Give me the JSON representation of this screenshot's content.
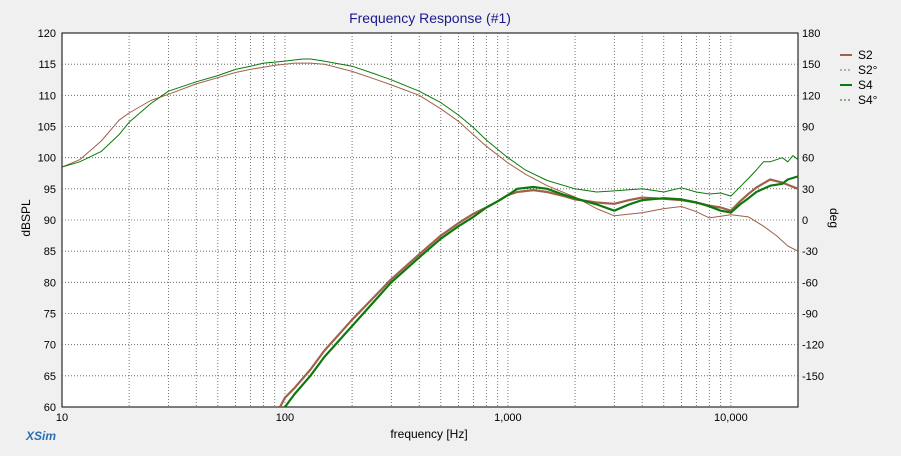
{
  "chart_data": {
    "type": "line",
    "title": "Frequency Response (#1)",
    "xlabel": "frequency [Hz]",
    "ylabel": "dBSPL",
    "y2label": "deg",
    "x_scale": "log",
    "xlim": [
      10,
      20000
    ],
    "ylim": [
      60,
      120
    ],
    "y2lim": [
      -180,
      180
    ],
    "grid": true,
    "legend_position": "right",
    "x_tick_labels": [
      "10",
      "100",
      "1,000",
      "10,000"
    ],
    "x_tick_values": [
      10,
      100,
      1000,
      10000
    ],
    "y_ticks": [
      60,
      65,
      70,
      75,
      80,
      85,
      90,
      95,
      100,
      105,
      110,
      115,
      120
    ],
    "y2_ticks": [
      -150,
      -120,
      -90,
      -60,
      -30,
      0,
      30,
      60,
      90,
      120,
      150,
      180
    ],
    "series": [
      {
        "name": "S2",
        "color": "#a0604a",
        "style": "solid",
        "axis": "left",
        "x": [
          95,
          100,
          110,
          130,
          150,
          200,
          300,
          400,
          500,
          600,
          700,
          800,
          900,
          1000,
          1100,
          1300,
          1500,
          1800,
          2000,
          2500,
          3000,
          3500,
          4000,
          5000,
          6000,
          7000,
          8000,
          9000,
          10000,
          11000,
          12000,
          13000,
          15000,
          17000,
          20000
        ],
        "y": [
          60,
          61.5,
          63,
          66,
          69,
          74,
          80.5,
          84.5,
          87.5,
          89.5,
          91,
          92,
          93,
          94,
          94.5,
          94.8,
          94.5,
          93.8,
          93.3,
          92.8,
          92.6,
          93.2,
          93.6,
          93.4,
          93.2,
          92.8,
          92.3,
          92,
          91.5,
          93,
          94.2,
          95.2,
          96.5,
          96,
          95
        ]
      },
      {
        "name": "S2°",
        "color": "#a0604a",
        "style": "dashed",
        "axis": "right",
        "x": [
          10,
          12,
          15,
          18,
          20,
          25,
          30,
          40,
          50,
          60,
          70,
          80,
          90,
          100,
          110,
          120,
          130,
          150,
          200,
          250,
          300,
          400,
          500,
          600,
          700,
          800,
          1000,
          1200,
          1500,
          2000,
          2500,
          3000,
          4000,
          5000,
          6000,
          7000,
          8000,
          10000,
          12000,
          14000,
          16000,
          18000,
          20000
        ],
        "y": [
          51,
          58,
          76,
          96,
          103,
          115,
          121,
          131,
          137,
          142,
          145,
          147,
          149,
          150,
          151,
          151,
          151,
          150,
          143,
          136,
          130,
          120,
          107,
          95,
          82,
          71,
          55,
          44,
          33,
          22,
          11,
          4,
          7,
          11,
          13,
          8,
          2,
          5,
          3,
          -6,
          -15,
          -25,
          -30
        ]
      },
      {
        "name": "S4",
        "color": "#0b7a0b",
        "style": "solid",
        "axis": "left",
        "x": [
          100,
          110,
          130,
          150,
          200,
          300,
          400,
          500,
          600,
          700,
          800,
          900,
          1000,
          1100,
          1300,
          1500,
          1800,
          2000,
          2500,
          3000,
          3500,
          4000,
          5000,
          6000,
          7000,
          8000,
          9000,
          10000,
          11000,
          12000,
          13000,
          15000,
          17000,
          18000,
          20000
        ],
        "y": [
          60,
          62,
          65,
          68,
          73,
          80,
          84,
          87,
          89,
          90.5,
          92,
          93,
          94,
          95,
          95.3,
          95,
          94,
          93.5,
          92.5,
          91.5,
          92.5,
          93.2,
          93.5,
          93.3,
          92.8,
          92.2,
          91.5,
          91.2,
          92.5,
          93.5,
          94.5,
          95.5,
          95.8,
          96.5,
          97
        ]
      },
      {
        "name": "S4°",
        "color": "#0b7a0b",
        "style": "dashed",
        "axis": "right",
        "x": [
          10,
          12,
          15,
          18,
          20,
          25,
          30,
          40,
          50,
          60,
          70,
          80,
          90,
          100,
          110,
          120,
          130,
          150,
          200,
          250,
          300,
          400,
          500,
          600,
          700,
          800,
          1000,
          1200,
          1500,
          2000,
          2500,
          3000,
          4000,
          5000,
          6000,
          7000,
          8000,
          9000,
          10000,
          11000,
          12000,
          13000,
          14000,
          15000,
          16000,
          17000,
          18000,
          19000,
          20000
        ],
        "y": [
          51,
          56,
          66,
          82,
          94,
          112,
          124,
          133,
          139,
          145,
          148,
          151,
          152,
          153,
          154,
          155,
          155,
          153,
          148,
          141,
          135,
          124,
          113,
          101,
          89,
          77,
          60,
          48,
          38,
          30,
          27,
          28,
          30,
          27,
          31,
          27,
          25,
          26,
          23,
          32,
          40,
          48,
          56,
          56,
          58,
          60,
          56,
          62,
          58
        ]
      }
    ]
  },
  "branding": {
    "name": "XSim"
  }
}
